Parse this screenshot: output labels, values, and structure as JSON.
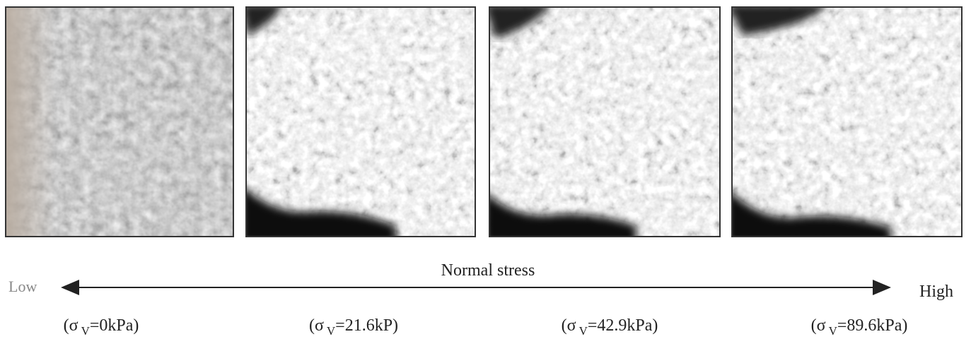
{
  "axis": {
    "title": "Normal stress",
    "low": "Low",
    "high": "High"
  },
  "captions": [
    {
      "open": "(σ",
      "sub": "V",
      "rest": "=0kPa)"
    },
    {
      "open": "(σ",
      "sub": "V",
      "rest": "=21.6kP)"
    },
    {
      "open": "(σ",
      "sub": "V",
      "rest": "=42.9kPa)"
    },
    {
      "open": "(σ",
      "sub": "V",
      "rest": "=89.6kPa)"
    }
  ]
}
